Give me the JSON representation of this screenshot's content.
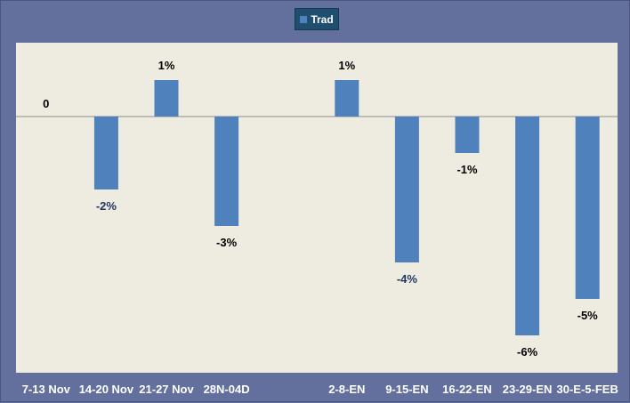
{
  "chart_data": {
    "type": "bar",
    "categories": [
      "7-13 Nov",
      "14-20 Nov",
      "21-27 Nov",
      "28N-04D",
      "",
      "2-8-EN",
      "9-15-EN",
      "16-22-EN",
      "23-29-EN",
      "30-E-5-FEB"
    ],
    "series": [
      {
        "name": "Trad",
        "values": [
          0,
          -2,
          1,
          -3,
          null,
          1,
          -4,
          -1,
          -6,
          -5
        ],
        "data_labels": [
          "0",
          "-2%",
          "1%",
          "-3%",
          "",
          "1%",
          "-4%",
          "-1%",
          "-6%",
          "-5%"
        ]
      }
    ],
    "ylim": [
      -6.4,
      2.0
    ],
    "grid": false,
    "legend_position": "top-center",
    "colors": {
      "bar": "#4f81bd",
      "plot_bg": "#eeece1",
      "frame_bg": "#63709e",
      "legend_bg": "#1f4e6e",
      "label_dark": "#000000",
      "label_blue": "#1f3864",
      "axis_label": "#ffffff"
    }
  }
}
